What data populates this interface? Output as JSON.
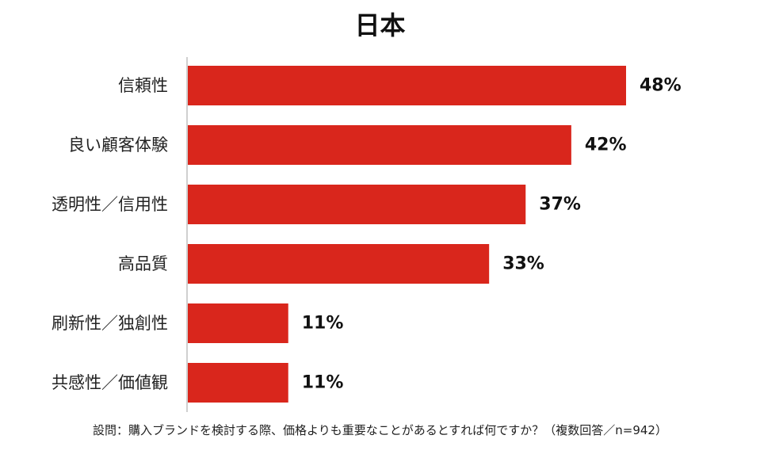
{
  "chart_data": {
    "type": "bar",
    "orientation": "horizontal",
    "title": "日本",
    "categories": [
      "信頼性",
      "良い顧客体験",
      "透明性／信用性",
      "高品質",
      "刷新性／独創性",
      "共感性／価値観"
    ],
    "values": [
      48,
      42,
      37,
      33,
      11,
      11
    ],
    "value_labels": [
      "48%",
      "42%",
      "37%",
      "33%",
      "11%",
      "11%"
    ],
    "unit": "%",
    "xlim": [
      0,
      48
    ],
    "grid": false,
    "legend": "none",
    "bar_color": "#d9261c"
  },
  "footnote": "設問：購入ブランドを検討する際、価格よりも重要なことがあるとすれば何ですか？（複数回答／n=942）"
}
